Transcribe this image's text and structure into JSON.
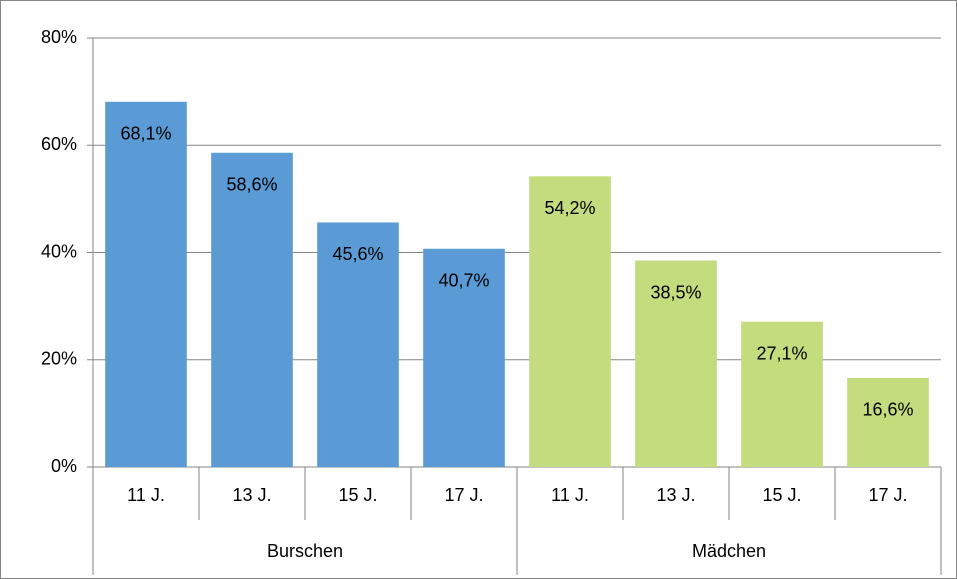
{
  "chart_data": {
    "type": "bar",
    "groups": [
      {
        "name": "Burschen",
        "color": "#5b9bd5",
        "categories": [
          "11 J.",
          "13 J.",
          "15 J.",
          "17 J."
        ],
        "values": [
          68.1,
          58.6,
          45.6,
          40.7
        ],
        "value_labels": [
          "68,1%",
          "58,6%",
          "45,6%",
          "40,7%"
        ]
      },
      {
        "name": "Mädchen",
        "color": "#c3dc7e",
        "categories": [
          "11 J.",
          "13 J.",
          "15 J.",
          "17 J."
        ],
        "values": [
          54.2,
          38.5,
          27.1,
          16.6
        ],
        "value_labels": [
          "54,2%",
          "38,5%",
          "27,1%",
          "16,6%"
        ]
      }
    ],
    "ylim": [
      0,
      80
    ],
    "yticks": [
      {
        "value": 0,
        "label": "0%"
      },
      {
        "value": 20,
        "label": "20%"
      },
      {
        "value": 40,
        "label": "40%"
      },
      {
        "value": 60,
        "label": "60%"
      },
      {
        "value": 80,
        "label": "80%"
      }
    ],
    "grid": true
  }
}
